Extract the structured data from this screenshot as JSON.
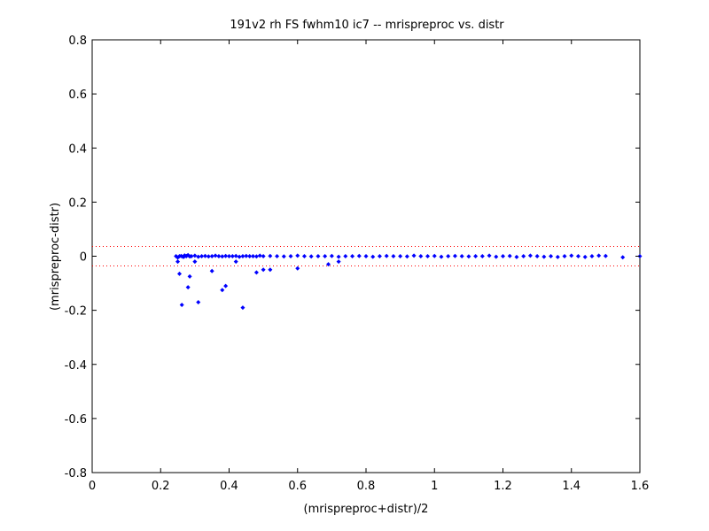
{
  "chart_data": {
    "type": "scatter",
    "title": "191v2 rh FS fwhm10 ic7 -- mrispreproc vs. distr",
    "xlabel": "(mrispreproc+distr)/2",
    "ylabel": "(mrispreproc-distr)",
    "xlim": [
      0,
      1.6
    ],
    "ylim": [
      -0.8,
      0.8
    ],
    "xticks": [
      "0",
      "0.2",
      "0.4",
      "0.6",
      "0.8",
      "1",
      "1.2",
      "1.4",
      "1.6"
    ],
    "yticks": [
      "-0.8",
      "-0.6",
      "-0.4",
      "-0.2",
      "0",
      "0.2",
      "0.4",
      "0.6",
      "0.8"
    ],
    "grid": false,
    "marker_color": "#0000ff",
    "reference_lines": {
      "y": [
        0.036,
        -0.036
      ],
      "color": "#ff0000",
      "style": "dotted"
    },
    "points": {
      "x": [
        0.245,
        0.25,
        0.255,
        0.26,
        0.265,
        0.27,
        0.275,
        0.28,
        0.285,
        0.29,
        0.3,
        0.31,
        0.32,
        0.33,
        0.34,
        0.35,
        0.36,
        0.37,
        0.38,
        0.39,
        0.4,
        0.41,
        0.42,
        0.43,
        0.44,
        0.45,
        0.46,
        0.47,
        0.48,
        0.49,
        0.5,
        0.52,
        0.54,
        0.56,
        0.58,
        0.6,
        0.62,
        0.64,
        0.66,
        0.68,
        0.7,
        0.72,
        0.74,
        0.76,
        0.78,
        0.8,
        0.82,
        0.84,
        0.86,
        0.88,
        0.9,
        0.92,
        0.94,
        0.96,
        0.98,
        1.0,
        1.02,
        1.04,
        1.06,
        1.08,
        1.1,
        1.12,
        1.14,
        1.16,
        1.18,
        1.2,
        1.22,
        1.24,
        1.26,
        1.28,
        1.3,
        1.32,
        1.34,
        1.36,
        1.38,
        1.4,
        1.42,
        1.44,
        1.46,
        1.48,
        1.5,
        1.55,
        1.6,
        0.25,
        0.255,
        0.262,
        0.268,
        0.275,
        0.28,
        0.285,
        0.3,
        0.31,
        0.35,
        0.38,
        0.39,
        0.42,
        0.44,
        0.48,
        0.5,
        0.52,
        0.6,
        0.69,
        0.72
      ],
      "y": [
        0.0,
        -0.005,
        0.0,
        0.001,
        -0.002,
        0.003,
        0.0,
        0.004,
        -0.001,
        0.0,
        0.002,
        -0.002,
        0.0,
        0.001,
        -0.001,
        0.0,
        0.002,
        0.0,
        -0.001,
        0.001,
        0.0,
        0.0,
        0.001,
        -0.002,
        0.0,
        0.001,
        0.0,
        0.0,
        -0.001,
        0.002,
        0.0,
        0.001,
        0.0,
        -0.001,
        0.0,
        0.002,
        0.0,
        -0.001,
        0.0,
        0.0,
        0.001,
        -0.002,
        0.0,
        0.0,
        0.001,
        0.0,
        -0.002,
        0.0,
        0.001,
        0.0,
        0.0,
        -0.001,
        0.002,
        0.0,
        0.0,
        0.001,
        -0.002,
        0.0,
        0.001,
        0.0,
        -0.001,
        0.0,
        0.0,
        0.002,
        -0.002,
        0.0,
        0.001,
        -0.003,
        0.0,
        0.002,
        0.0,
        -0.002,
        0.0,
        -0.003,
        0.0,
        0.002,
        0.0,
        -0.003,
        0.0,
        0.002,
        0.001,
        -0.004,
        0.0,
        -0.02,
        -0.065,
        -0.18,
        -0.002,
        0.001,
        -0.115,
        -0.075,
        -0.02,
        -0.17,
        -0.055,
        -0.125,
        -0.11,
        -0.02,
        -0.19,
        -0.06,
        -0.05,
        -0.05,
        -0.045,
        -0.03,
        -0.02
      ]
    }
  }
}
